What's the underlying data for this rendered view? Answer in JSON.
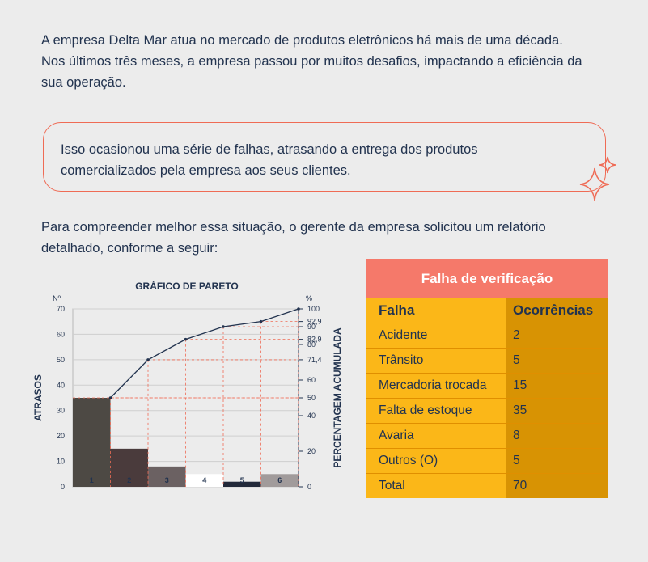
{
  "intro": {
    "line1": "A empresa Delta Mar atua no mercado de produtos eletrônicos há mais de uma década.",
    "line2": "Nos últimos três meses, a empresa passou por muitos desafios, impactando a eficiência da",
    "line3": "sua operação."
  },
  "callout": {
    "line1": "Isso ocasionou uma série de falhas, atrasando a entrega dos produtos",
    "line2": "comercializados pela empresa aos seus clientes."
  },
  "para2": {
    "line1": "Para compreender melhor essa situação, o gerente da empresa solicitou um relatório",
    "line2": "detalhado, conforme a seguir:"
  },
  "table": {
    "title": "Falha de verificação",
    "headers": [
      "Falha",
      "Ocorrências"
    ],
    "rows": [
      [
        "Acidente",
        "2"
      ],
      [
        "Trânsito",
        "5"
      ],
      [
        "Mercadoria trocada",
        "15"
      ],
      [
        "Falta de estoque",
        "35"
      ],
      [
        "Avaria",
        "8"
      ],
      [
        "Outros (O)",
        "5"
      ],
      [
        "Total",
        "70"
      ]
    ]
  },
  "colors": {
    "text": "#22334f",
    "accent": "#ef6b55",
    "table_header": "#f5796a",
    "table_light": "#fbb718",
    "table_dark": "#d89303"
  },
  "chart_data": {
    "type": "bar",
    "title": "GRÁFICO DE PARETO",
    "left_unit": "Nº",
    "right_unit": "%",
    "ylabel": "ATRASOS",
    "y2label": "PERCENTAGEM ACUMULADA",
    "ylim": [
      0,
      70
    ],
    "y2lim": [
      0,
      100
    ],
    "yticks": [
      0,
      10,
      20,
      30,
      40,
      50,
      60,
      70
    ],
    "y2ticks": [
      0,
      20,
      40,
      50,
      60,
      71.4,
      80,
      82.9,
      90,
      92.9,
      100
    ],
    "y2tick_labels": [
      "0",
      "20",
      "40",
      "50",
      "60",
      "71,4",
      "80",
      "82,9",
      "90",
      "92,9",
      "100"
    ],
    "categories": [
      "1",
      "2",
      "3",
      "4",
      "5",
      "6"
    ],
    "values": [
      35,
      15,
      8,
      5,
      2,
      5
    ],
    "bar_colors": [
      "#4d4944",
      "#4a3b3c",
      "#6b6162",
      "#ffffff",
      "#22293a",
      "#a19b9b"
    ],
    "label_colors": [
      "#ffffff",
      "#ffffff",
      "#ffffff",
      "#22334f",
      "#ffffff",
      "#ffffff"
    ],
    "cumulative_percent": [
      50,
      71.4,
      82.9,
      90,
      92.9,
      100
    ]
  }
}
